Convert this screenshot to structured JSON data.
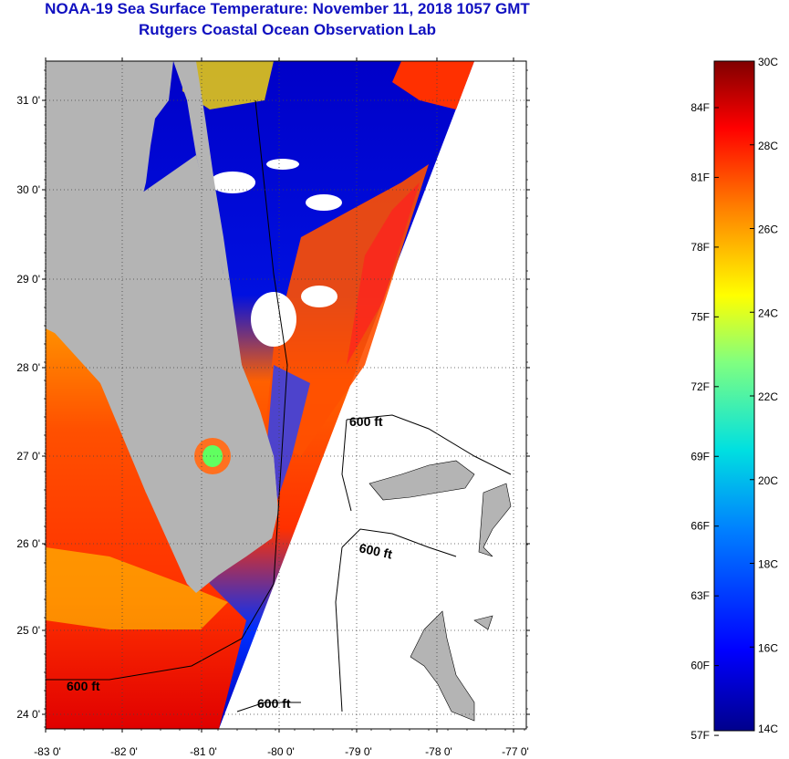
{
  "header": {
    "title": "NOAA-19 Sea Surface Temperature:  November 11, 2018 1057 GMT",
    "subtitle": "Rutgers Coastal Ocean Observation Lab"
  },
  "map": {
    "lat_ticks": [
      "31 0'",
      "30 0'",
      "29 0'",
      "28 0'",
      "27 0'",
      "26 0'",
      "25 0'",
      "24 0'"
    ],
    "lon_ticks": [
      "-83 0'",
      "-82 0'",
      "-81 0'",
      "-80 0'",
      "-79 0'",
      "-78 0'",
      "-77 0'"
    ],
    "depth_labels": [
      "600 ft",
      "600 ft",
      "600 ft",
      "600 ft"
    ],
    "colors": {
      "land": "#b4b4b4",
      "nodata": "#ffffff"
    }
  },
  "colorbar": {
    "celsius": [
      "30C",
      "28C",
      "26C",
      "24C",
      "22C",
      "20C",
      "18C",
      "16C",
      "14C"
    ],
    "fahrenheit": [
      "84F",
      "81F",
      "78F",
      "75F",
      "72F",
      "69F",
      "66F",
      "63F",
      "60F",
      "57F"
    ],
    "range_c": [
      14,
      30
    ]
  }
}
